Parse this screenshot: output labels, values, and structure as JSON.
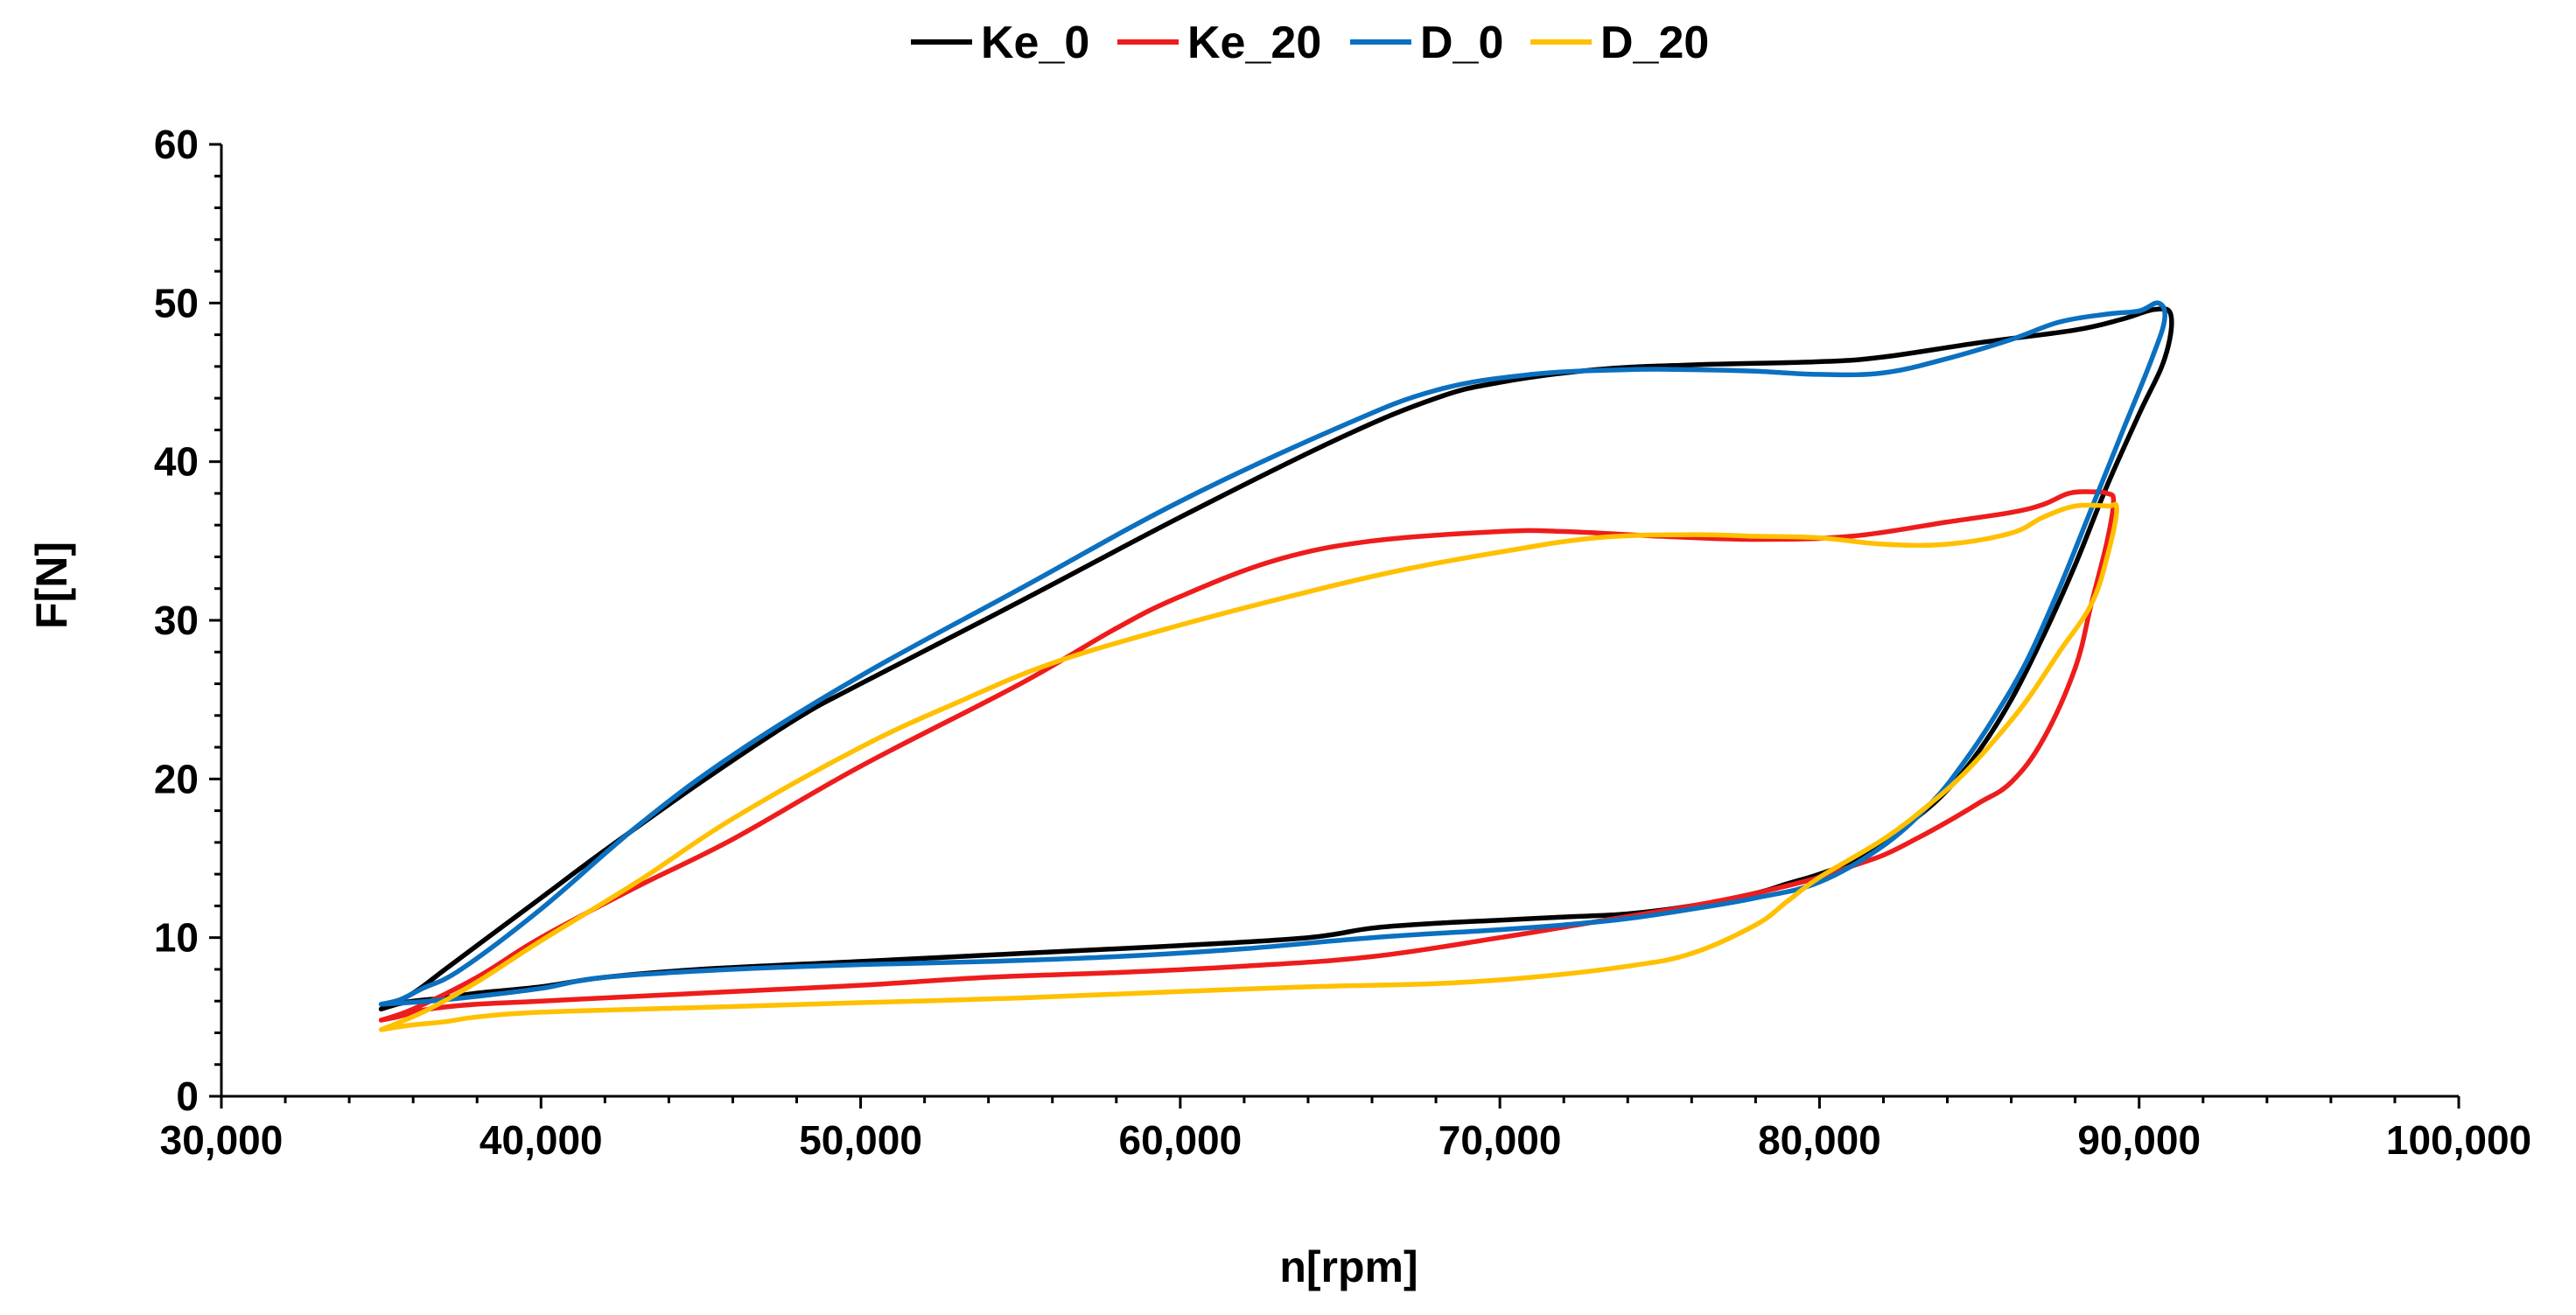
{
  "chart_data": {
    "type": "line",
    "title": "",
    "xlabel": "n[rpm]",
    "ylabel": "F[N]",
    "xlim": [
      30000,
      100000
    ],
    "ylim": [
      0,
      60
    ],
    "x_major_step": 10000,
    "x_minor_step": 2000,
    "y_major_step": 10,
    "y_minor_step": 2,
    "x_tick_labels": [
      "30,000",
      "40,000",
      "50,000",
      "60,000",
      "70,000",
      "80,000",
      "90,000",
      "100,000"
    ],
    "y_tick_labels": [
      "0",
      "10",
      "20",
      "30",
      "40",
      "50",
      "60"
    ],
    "grid": false,
    "legend_position": "top-center",
    "series": [
      {
        "name": "Ke_0",
        "color": "#000000",
        "points": [
          [
            35000,
            5.5
          ],
          [
            36000,
            6.5
          ],
          [
            37000,
            8.0
          ],
          [
            38000,
            9.5
          ],
          [
            40000,
            12.5
          ],
          [
            42000,
            15.5
          ],
          [
            45000,
            19.8
          ],
          [
            48000,
            23.8
          ],
          [
            50000,
            26.0
          ],
          [
            55000,
            31.2
          ],
          [
            60000,
            36.5
          ],
          [
            65000,
            41.5
          ],
          [
            68000,
            44.0
          ],
          [
            70000,
            45.0
          ],
          [
            73000,
            45.8
          ],
          [
            76000,
            46.1
          ],
          [
            80000,
            46.3
          ],
          [
            82000,
            46.6
          ],
          [
            85000,
            47.5
          ],
          [
            88000,
            48.3
          ],
          [
            89500,
            49.0
          ],
          [
            90500,
            49.6
          ],
          [
            91000,
            49.2
          ],
          [
            90800,
            46.5
          ],
          [
            90000,
            43.0
          ],
          [
            89000,
            38.5
          ],
          [
            88000,
            33.5
          ],
          [
            87000,
            29.0
          ],
          [
            86000,
            25.0
          ],
          [
            85000,
            21.8
          ],
          [
            84000,
            19.3
          ],
          [
            83000,
            17.5
          ],
          [
            82000,
            16.0
          ],
          [
            81000,
            14.8
          ],
          [
            80000,
            14.0
          ],
          [
            79000,
            13.4
          ],
          [
            78000,
            12.8
          ],
          [
            76000,
            12.0
          ],
          [
            74000,
            11.5
          ],
          [
            72000,
            11.3
          ],
          [
            70000,
            11.1
          ],
          [
            68000,
            10.9
          ],
          [
            66000,
            10.6
          ],
          [
            64000,
            10.0
          ],
          [
            60000,
            9.5
          ],
          [
            55000,
            9.0
          ],
          [
            50000,
            8.5
          ],
          [
            45000,
            8.0
          ],
          [
            42000,
            7.5
          ],
          [
            40000,
            6.9
          ],
          [
            38000,
            6.5
          ],
          [
            37000,
            6.2
          ],
          [
            36000,
            6.0
          ],
          [
            35500,
            5.8
          ],
          [
            35000,
            5.5
          ]
        ]
      },
      {
        "name": "Ke_20",
        "color": "#ee1c1c",
        "points": [
          [
            35000,
            4.8
          ],
          [
            36000,
            5.5
          ],
          [
            38000,
            7.5
          ],
          [
            40000,
            10.0
          ],
          [
            43000,
            13.2
          ],
          [
            46000,
            16.2
          ],
          [
            50000,
            20.8
          ],
          [
            55000,
            26.0
          ],
          [
            58000,
            29.5
          ],
          [
            60000,
            31.5
          ],
          [
            63000,
            33.8
          ],
          [
            66000,
            35.0
          ],
          [
            70000,
            35.6
          ],
          [
            72000,
            35.6
          ],
          [
            75000,
            35.3
          ],
          [
            78000,
            35.1
          ],
          [
            81000,
            35.3
          ],
          [
            84000,
            36.2
          ],
          [
            86000,
            36.8
          ],
          [
            87000,
            37.3
          ],
          [
            87800,
            38.0
          ],
          [
            88500,
            38.1
          ],
          [
            89000,
            38.0
          ],
          [
            89200,
            37.5
          ],
          [
            89000,
            35.0
          ],
          [
            88500,
            31.0
          ],
          [
            88000,
            27.0
          ],
          [
            87000,
            22.5
          ],
          [
            86000,
            19.8
          ],
          [
            85000,
            18.5
          ],
          [
            84000,
            17.3
          ],
          [
            83000,
            16.2
          ],
          [
            82000,
            15.2
          ],
          [
            81000,
            14.5
          ],
          [
            80000,
            13.8
          ],
          [
            78000,
            12.8
          ],
          [
            76000,
            12.0
          ],
          [
            73000,
            11.0
          ],
          [
            70000,
            10.0
          ],
          [
            66000,
            8.8
          ],
          [
            62000,
            8.2
          ],
          [
            58000,
            7.8
          ],
          [
            54000,
            7.5
          ],
          [
            50000,
            7.0
          ],
          [
            45000,
            6.5
          ],
          [
            40000,
            6.0
          ],
          [
            38000,
            5.8
          ],
          [
            36500,
            5.5
          ],
          [
            35500,
            5.0
          ],
          [
            35000,
            4.8
          ]
        ]
      },
      {
        "name": "D_0",
        "color": "#0b70c0",
        "points": [
          [
            35000,
            5.8
          ],
          [
            35600,
            6.1
          ],
          [
            36300,
            6.8
          ],
          [
            37500,
            8.0
          ],
          [
            40000,
            11.8
          ],
          [
            43000,
            17.0
          ],
          [
            46000,
            21.5
          ],
          [
            50000,
            26.5
          ],
          [
            55000,
            32.0
          ],
          [
            60000,
            37.5
          ],
          [
            65000,
            42.2
          ],
          [
            68000,
            44.5
          ],
          [
            71000,
            45.5
          ],
          [
            74000,
            45.8
          ],
          [
            76000,
            45.8
          ],
          [
            78000,
            45.7
          ],
          [
            80000,
            45.5
          ],
          [
            82000,
            45.6
          ],
          [
            84000,
            46.5
          ],
          [
            86000,
            47.7
          ],
          [
            87500,
            48.8
          ],
          [
            89000,
            49.3
          ],
          [
            90000,
            49.5
          ],
          [
            90600,
            50.0
          ],
          [
            90800,
            49.0
          ],
          [
            90400,
            46.5
          ],
          [
            89500,
            42.0
          ],
          [
            88500,
            37.0
          ],
          [
            87500,
            32.0
          ],
          [
            86500,
            27.5
          ],
          [
            85500,
            24.0
          ],
          [
            84500,
            21.0
          ],
          [
            83500,
            18.5
          ],
          [
            82000,
            15.8
          ],
          [
            80000,
            13.5
          ],
          [
            78000,
            12.5
          ],
          [
            76000,
            11.8
          ],
          [
            74000,
            11.2
          ],
          [
            72000,
            10.8
          ],
          [
            70000,
            10.5
          ],
          [
            66000,
            10.0
          ],
          [
            62000,
            9.3
          ],
          [
            58000,
            8.8
          ],
          [
            54000,
            8.5
          ],
          [
            50000,
            8.3
          ],
          [
            46000,
            8.0
          ],
          [
            42000,
            7.5
          ],
          [
            40000,
            6.8
          ],
          [
            38000,
            6.3
          ],
          [
            36500,
            6.0
          ],
          [
            35000,
            5.8
          ]
        ]
      },
      {
        "name": "D_20",
        "color": "#ffc000",
        "points": [
          [
            35000,
            4.2
          ],
          [
            35500,
            4.6
          ],
          [
            36500,
            5.5
          ],
          [
            38000,
            7.2
          ],
          [
            40000,
            9.8
          ],
          [
            43000,
            13.5
          ],
          [
            46000,
            17.5
          ],
          [
            50000,
            22.0
          ],
          [
            53000,
            24.8
          ],
          [
            56000,
            27.3
          ],
          [
            60000,
            29.7
          ],
          [
            64000,
            31.8
          ],
          [
            67000,
            33.2
          ],
          [
            70000,
            34.3
          ],
          [
            73000,
            35.2
          ],
          [
            76000,
            35.4
          ],
          [
            78000,
            35.3
          ],
          [
            80000,
            35.2
          ],
          [
            82000,
            34.8
          ],
          [
            84000,
            34.8
          ],
          [
            86000,
            35.5
          ],
          [
            87000,
            36.5
          ],
          [
            88000,
            37.2
          ],
          [
            89000,
            37.2
          ],
          [
            89300,
            37.0
          ],
          [
            89000,
            34.0
          ],
          [
            88500,
            31.0
          ],
          [
            87500,
            28.0
          ],
          [
            86500,
            25.0
          ],
          [
            85500,
            22.5
          ],
          [
            84500,
            20.3
          ],
          [
            83500,
            18.5
          ],
          [
            82000,
            16.2
          ],
          [
            80000,
            13.8
          ],
          [
            79000,
            12.3
          ],
          [
            78000,
            10.8
          ],
          [
            76000,
            9.0
          ],
          [
            74000,
            8.2
          ],
          [
            71000,
            7.5
          ],
          [
            68000,
            7.1
          ],
          [
            64000,
            6.9
          ],
          [
            60000,
            6.6
          ],
          [
            55000,
            6.2
          ],
          [
            50000,
            5.9
          ],
          [
            45000,
            5.6
          ],
          [
            40000,
            5.3
          ],
          [
            38000,
            5.0
          ],
          [
            37000,
            4.7
          ],
          [
            36000,
            4.5
          ],
          [
            35000,
            4.2
          ]
        ]
      }
    ]
  }
}
